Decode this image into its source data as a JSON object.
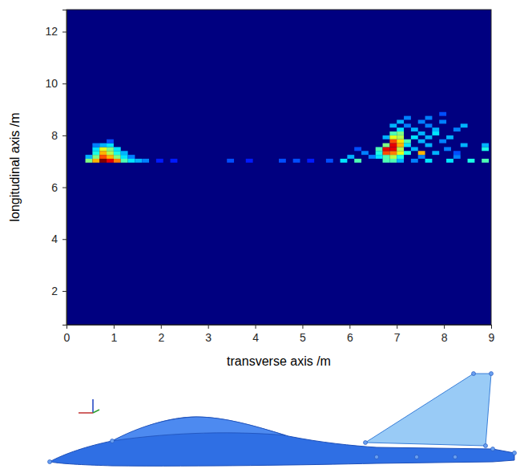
{
  "chart_data": {
    "type": "heatmap",
    "x_label": "transverse axis /m",
    "y_label": "longitudinal axis /m",
    "xlim": [
      0,
      9
    ],
    "xticks": [
      0,
      1,
      2,
      3,
      4,
      5,
      6,
      7,
      8,
      9
    ],
    "ylim": [
      0.7,
      12.85
    ],
    "yticks": [
      2,
      4,
      6,
      8,
      10,
      12
    ],
    "color_range": [
      0,
      1
    ],
    "cells": [
      [
        0.4,
        0.55,
        6.95,
        7.1,
        0.5
      ],
      [
        0.55,
        0.7,
        6.95,
        7.1,
        0.7
      ],
      [
        0.7,
        0.85,
        6.95,
        7.1,
        1.0
      ],
      [
        0.85,
        1.0,
        6.95,
        7.1,
        0.9
      ],
      [
        1.0,
        1.15,
        6.95,
        7.1,
        0.75
      ],
      [
        1.15,
        1.3,
        6.95,
        7.1,
        0.45
      ],
      [
        1.3,
        1.45,
        6.95,
        7.1,
        0.35
      ],
      [
        1.45,
        1.6,
        6.95,
        7.1,
        0.3
      ],
      [
        1.6,
        1.75,
        6.95,
        7.1,
        0.25
      ],
      [
        0.4,
        0.55,
        7.1,
        7.25,
        0.3
      ],
      [
        0.55,
        0.7,
        7.1,
        7.25,
        0.5
      ],
      [
        0.7,
        0.85,
        7.1,
        7.25,
        0.8
      ],
      [
        0.85,
        1.0,
        7.1,
        7.25,
        0.7
      ],
      [
        1.0,
        1.15,
        7.1,
        7.25,
        0.5
      ],
      [
        1.15,
        1.3,
        7.1,
        7.25,
        0.35
      ],
      [
        1.3,
        1.45,
        7.1,
        7.25,
        0.25
      ],
      [
        0.55,
        0.7,
        7.25,
        7.4,
        0.4
      ],
      [
        0.7,
        0.85,
        7.25,
        7.4,
        0.7
      ],
      [
        0.85,
        1.0,
        7.25,
        7.4,
        0.55
      ],
      [
        1.0,
        1.15,
        7.25,
        7.4,
        0.4
      ],
      [
        1.15,
        1.3,
        7.25,
        7.4,
        0.3
      ],
      [
        0.55,
        0.7,
        7.4,
        7.55,
        0.35
      ],
      [
        0.7,
        0.85,
        7.4,
        7.55,
        0.6
      ],
      [
        0.85,
        1.0,
        7.4,
        7.55,
        0.5
      ],
      [
        1.0,
        1.15,
        7.4,
        7.55,
        0.35
      ],
      [
        0.55,
        0.7,
        7.55,
        7.7,
        0.25
      ],
      [
        0.7,
        0.85,
        7.55,
        7.7,
        0.3
      ],
      [
        0.85,
        1.0,
        7.55,
        7.7,
        0.35
      ],
      [
        0.85,
        1.0,
        7.7,
        7.85,
        0.2
      ],
      [
        1.9,
        2.05,
        6.95,
        7.1,
        0.15
      ],
      [
        2.2,
        2.35,
        6.95,
        7.1,
        0.15
      ],
      [
        3.4,
        3.55,
        6.95,
        7.1,
        0.2
      ],
      [
        3.8,
        3.95,
        6.95,
        7.1,
        0.15
      ],
      [
        4.5,
        4.65,
        6.95,
        7.1,
        0.2
      ],
      [
        4.8,
        4.95,
        6.95,
        7.1,
        0.2
      ],
      [
        5.1,
        5.25,
        6.95,
        7.1,
        0.15
      ],
      [
        5.5,
        5.65,
        6.95,
        7.1,
        0.2
      ],
      [
        5.8,
        5.95,
        6.95,
        7.1,
        0.35
      ],
      [
        6.1,
        6.25,
        6.95,
        7.1,
        0.45
      ],
      [
        6.7,
        6.85,
        6.95,
        7.1,
        0.45
      ],
      [
        6.85,
        7.0,
        6.95,
        7.1,
        0.45
      ],
      [
        7.0,
        7.15,
        6.95,
        7.1,
        0.3
      ],
      [
        7.3,
        7.45,
        6.95,
        7.1,
        0.25
      ],
      [
        7.6,
        7.75,
        6.95,
        7.1,
        0.35
      ],
      [
        8.05,
        8.2,
        6.95,
        7.1,
        0.35
      ],
      [
        8.5,
        8.65,
        6.95,
        7.1,
        0.4
      ],
      [
        8.8,
        8.95,
        6.95,
        7.1,
        0.45
      ],
      [
        5.95,
        6.1,
        7.1,
        7.25,
        0.3
      ],
      [
        6.4,
        6.55,
        7.1,
        7.25,
        0.25
      ],
      [
        6.55,
        6.7,
        7.1,
        7.25,
        0.35
      ],
      [
        6.7,
        6.85,
        7.1,
        7.25,
        0.45
      ],
      [
        6.85,
        7.0,
        7.1,
        7.25,
        0.55
      ],
      [
        7.0,
        7.15,
        7.1,
        7.25,
        0.4
      ],
      [
        7.45,
        7.6,
        7.1,
        7.25,
        0.25
      ],
      [
        8.2,
        8.35,
        7.1,
        7.25,
        0.25
      ],
      [
        6.25,
        6.4,
        7.25,
        7.4,
        0.25
      ],
      [
        6.55,
        6.7,
        7.25,
        7.4,
        0.4
      ],
      [
        6.7,
        6.85,
        7.25,
        7.4,
        0.8
      ],
      [
        6.85,
        7.0,
        7.25,
        7.4,
        0.75
      ],
      [
        7.0,
        7.15,
        7.25,
        7.4,
        0.6
      ],
      [
        7.15,
        7.3,
        7.25,
        7.4,
        0.4
      ],
      [
        7.45,
        7.6,
        7.25,
        7.4,
        0.7
      ],
      [
        7.75,
        7.9,
        7.25,
        7.4,
        0.3
      ],
      [
        8.2,
        8.35,
        7.25,
        7.4,
        0.2
      ],
      [
        6.1,
        6.25,
        7.4,
        7.55,
        0.2
      ],
      [
        6.55,
        6.7,
        7.4,
        7.55,
        0.45
      ],
      [
        6.7,
        6.85,
        7.4,
        7.55,
        0.9
      ],
      [
        6.85,
        7.0,
        7.4,
        7.55,
        0.9
      ],
      [
        7.0,
        7.15,
        7.4,
        7.55,
        0.55
      ],
      [
        7.3,
        7.45,
        7.4,
        7.55,
        0.3
      ],
      [
        8.0,
        8.15,
        7.4,
        7.55,
        0.25
      ],
      [
        8.8,
        8.95,
        7.4,
        7.55,
        0.4
      ],
      [
        6.7,
        6.85,
        7.55,
        7.7,
        0.5
      ],
      [
        6.85,
        7.0,
        7.55,
        7.7,
        0.9
      ],
      [
        7.0,
        7.15,
        7.55,
        7.7,
        0.7
      ],
      [
        7.15,
        7.3,
        7.55,
        7.7,
        0.35
      ],
      [
        7.6,
        7.75,
        7.55,
        7.7,
        0.3
      ],
      [
        8.35,
        8.5,
        7.55,
        7.7,
        0.3
      ],
      [
        8.8,
        8.95,
        7.55,
        7.7,
        0.3
      ],
      [
        6.85,
        7.0,
        7.7,
        7.85,
        0.8
      ],
      [
        7.0,
        7.15,
        7.7,
        7.85,
        0.65
      ],
      [
        7.15,
        7.3,
        7.7,
        7.85,
        0.45
      ],
      [
        7.45,
        7.6,
        7.7,
        7.85,
        0.3
      ],
      [
        7.9,
        8.05,
        7.7,
        7.85,
        0.25
      ],
      [
        6.7,
        6.85,
        7.85,
        8.0,
        0.3
      ],
      [
        6.85,
        7.0,
        7.85,
        8.0,
        0.6
      ],
      [
        7.0,
        7.15,
        7.85,
        8.0,
        0.55
      ],
      [
        7.3,
        7.45,
        7.85,
        8.0,
        0.35
      ],
      [
        7.6,
        7.75,
        7.85,
        8.0,
        0.3
      ],
      [
        8.05,
        8.2,
        7.85,
        8.0,
        0.3
      ],
      [
        6.85,
        7.0,
        8.0,
        8.15,
        0.45
      ],
      [
        7.0,
        7.15,
        8.0,
        8.15,
        0.5
      ],
      [
        7.45,
        7.6,
        8.0,
        8.15,
        0.3
      ],
      [
        7.75,
        7.9,
        8.0,
        8.15,
        0.35
      ],
      [
        7.0,
        7.15,
        8.15,
        8.3,
        0.35
      ],
      [
        7.3,
        7.45,
        8.15,
        8.3,
        0.3
      ],
      [
        7.75,
        7.9,
        8.15,
        8.3,
        0.3
      ],
      [
        8.2,
        8.35,
        8.15,
        8.3,
        0.25
      ],
      [
        6.85,
        7.0,
        8.3,
        8.45,
        0.3
      ],
      [
        7.15,
        7.3,
        8.3,
        8.45,
        0.25
      ],
      [
        7.6,
        7.75,
        8.3,
        8.45,
        0.25
      ],
      [
        8.35,
        8.5,
        8.3,
        8.45,
        0.3
      ],
      [
        7.0,
        7.15,
        8.45,
        8.6,
        0.3
      ],
      [
        7.45,
        7.6,
        8.45,
        8.6,
        0.25
      ],
      [
        7.9,
        8.05,
        8.45,
        8.6,
        0.25
      ],
      [
        7.15,
        7.3,
        8.6,
        8.75,
        0.25
      ],
      [
        7.6,
        7.75,
        8.6,
        8.75,
        0.25
      ],
      [
        7.9,
        8.05,
        8.75,
        8.9,
        0.2
      ]
    ]
  }
}
